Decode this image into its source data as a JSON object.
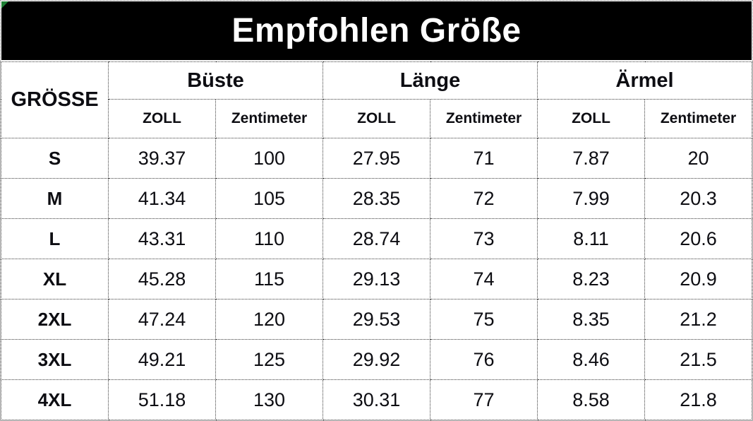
{
  "title": "Empfohlen Größe",
  "colors": {
    "title_bg": "#000000",
    "title_text": "#ffffff",
    "table_text": "#0d0d12",
    "grid_border": "#3c3c3c",
    "background": "#ffffff",
    "corner_marker": "#1e7e34"
  },
  "chart_data": {
    "type": "table",
    "title": "Empfohlen Größe",
    "row_header_label": "GRÖSSE",
    "column_groups": [
      {
        "label": "Büste",
        "subcolumns": [
          "ZOLL",
          "Zentimeter"
        ]
      },
      {
        "label": "Länge",
        "subcolumns": [
          "ZOLL",
          "Zentimeter"
        ]
      },
      {
        "label": "Ärmel",
        "subcolumns": [
          "ZOLL",
          "Zentimeter"
        ]
      }
    ],
    "rows": [
      {
        "size": "S",
        "values": [
          "39.37",
          "100",
          "27.95",
          "71",
          "7.87",
          "20"
        ]
      },
      {
        "size": "M",
        "values": [
          "41.34",
          "105",
          "28.35",
          "72",
          "7.99",
          "20.3"
        ]
      },
      {
        "size": "L",
        "values": [
          "43.31",
          "110",
          "28.74",
          "73",
          "8.11",
          "20.6"
        ]
      },
      {
        "size": "XL",
        "values": [
          "45.28",
          "115",
          "29.13",
          "74",
          "8.23",
          "20.9"
        ]
      },
      {
        "size": "2XL",
        "values": [
          "47.24",
          "120",
          "29.53",
          "75",
          "8.35",
          "21.2"
        ]
      },
      {
        "size": "3XL",
        "values": [
          "49.21",
          "125",
          "29.92",
          "76",
          "8.46",
          "21.5"
        ]
      },
      {
        "size": "4XL",
        "values": [
          "51.18",
          "130",
          "30.31",
          "77",
          "8.58",
          "21.8"
        ]
      }
    ]
  }
}
